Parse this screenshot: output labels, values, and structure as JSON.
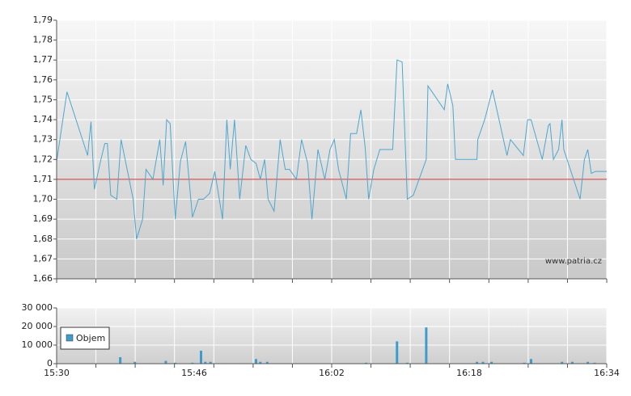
{
  "chart_data": [
    {
      "type": "line",
      "color": "#4ea6cf",
      "reference_line": 1.71,
      "reference_color": "#d03030",
      "annotation": "www.patria.cz",
      "grid": true,
      "xlim": [
        930,
        994
      ],
      "xgrid": [
        930,
        934.57,
        939.14,
        943.71,
        948.29,
        952.86,
        957.43,
        962,
        966.57,
        971.14,
        975.71,
        980.29,
        984.86,
        989.43,
        994
      ],
      "ylim": [
        1.66,
        1.79
      ],
      "yticks": [
        {
          "value": 1.66,
          "label": "1,66"
        },
        {
          "value": 1.67,
          "label": "1,67"
        },
        {
          "value": 1.68,
          "label": "1,68"
        },
        {
          "value": 1.69,
          "label": "1,69"
        },
        {
          "value": 1.7,
          "label": "1,70"
        },
        {
          "value": 1.71,
          "label": "1,71"
        },
        {
          "value": 1.72,
          "label": "1,72"
        },
        {
          "value": 1.73,
          "label": "1,73"
        },
        {
          "value": 1.74,
          "label": "1,74"
        },
        {
          "value": 1.75,
          "label": "1,75"
        },
        {
          "value": 1.76,
          "label": "1,76"
        },
        {
          "value": 1.77,
          "label": "1,77"
        },
        {
          "value": 1.78,
          "label": "1,78"
        },
        {
          "value": 1.79,
          "label": "1,79"
        }
      ],
      "x": [
        930.0,
        931.2,
        933.6,
        934.0,
        934.4,
        935.1,
        935.6,
        935.9,
        936.3,
        937.0,
        937.5,
        938.9,
        939.3,
        940.0,
        940.4,
        941.2,
        942.0,
        942.4,
        942.8,
        943.2,
        943.8,
        944.4,
        945.0,
        945.8,
        946.5,
        947.1,
        947.8,
        948.4,
        949.3,
        949.8,
        950.2,
        950.7,
        951.3,
        952.0,
        952.6,
        953.2,
        953.7,
        954.2,
        954.6,
        955.3,
        956.0,
        956.6,
        957.1,
        957.9,
        958.5,
        959.2,
        959.7,
        960.4,
        961.2,
        961.8,
        962.3,
        962.8,
        963.7,
        964.2,
        964.9,
        965.4,
        965.9,
        966.3,
        966.9,
        967.6,
        969.1,
        969.6,
        970.2,
        970.8,
        971.5,
        973.0,
        973.2,
        975.1,
        975.5,
        976.1,
        976.4,
        978.9,
        979.0,
        979.8,
        980.7,
        982.4,
        982.8,
        984.3,
        984.8,
        985.2,
        986.5,
        987.2,
        987.4,
        987.8,
        988.4,
        988.8,
        989.0,
        990.9,
        991.4,
        991.8,
        992.2,
        992.7,
        994.0
      ],
      "values": [
        1.719,
        1.754,
        1.722,
        1.739,
        1.705,
        1.719,
        1.728,
        1.728,
        1.702,
        1.7,
        1.73,
        1.7,
        1.68,
        1.69,
        1.715,
        1.71,
        1.73,
        1.707,
        1.74,
        1.738,
        1.69,
        1.719,
        1.729,
        1.691,
        1.7,
        1.7,
        1.703,
        1.714,
        1.69,
        1.74,
        1.715,
        1.74,
        1.7,
        1.727,
        1.72,
        1.718,
        1.71,
        1.72,
        1.7,
        1.694,
        1.73,
        1.715,
        1.715,
        1.71,
        1.73,
        1.718,
        1.69,
        1.725,
        1.71,
        1.725,
        1.73,
        1.715,
        1.7,
        1.733,
        1.733,
        1.745,
        1.726,
        1.7,
        1.715,
        1.725,
        1.725,
        1.77,
        1.769,
        1.7,
        1.702,
        1.72,
        1.757,
        1.745,
        1.758,
        1.747,
        1.72,
        1.72,
        1.73,
        1.74,
        1.755,
        1.722,
        1.73,
        1.722,
        1.74,
        1.74,
        1.72,
        1.737,
        1.738,
        1.72,
        1.725,
        1.74,
        1.725,
        1.7,
        1.72,
        1.725,
        1.713,
        1.714,
        1.714
      ]
    },
    {
      "type": "bar",
      "color": "#3e9ccc",
      "grid": true,
      "xlim": [
        930,
        994
      ],
      "xticks": [
        {
          "value": 930,
          "label": "15:30"
        },
        {
          "value": 946,
          "label": "15:46"
        },
        {
          "value": 962,
          "label": "16:02"
        },
        {
          "value": 978,
          "label": "16:18"
        },
        {
          "value": 994,
          "label": "16:34"
        }
      ],
      "ylim": [
        0,
        30000
      ],
      "yticks": [
        0,
        {
          "value": 10000,
          "label": "10 000"
        },
        {
          "value": 20000,
          "label": "20 000"
        },
        {
          "value": 30000,
          "label": "30 000"
        }
      ],
      "series_name": "Objem",
      "x": [
        937.4,
        939.1,
        942.7,
        943.8,
        945.8,
        946.8,
        947.3,
        947.9,
        953.2,
        953.7,
        954.5,
        966.0,
        969.6,
        970.8,
        973.0,
        978.9,
        979.6,
        980.6,
        984.4,
        985.2,
        988.8,
        990.0,
        991.8,
        992.6
      ],
      "values": [
        3500,
        1000,
        1500,
        500,
        500,
        7000,
        1000,
        1000,
        2500,
        1000,
        1000,
        500,
        12000,
        500,
        19500,
        1000,
        1000,
        1000,
        500,
        2500,
        1000,
        1000,
        1000,
        500
      ]
    }
  ]
}
